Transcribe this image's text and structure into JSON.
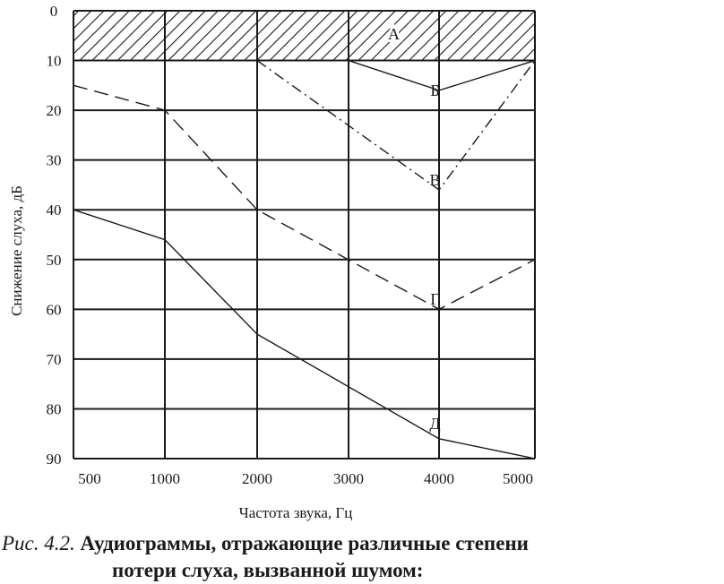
{
  "chart_data": {
    "type": "line",
    "xlabel": "Частота звука, Гц",
    "ylabel": "Снижение слуха, дБ",
    "x_ticks": [
      "500",
      "1000",
      "2000",
      "3000",
      "4000",
      "5000"
    ],
    "y_ticks": [
      "0",
      "10",
      "20",
      "30",
      "40",
      "50",
      "60",
      "70",
      "80",
      "90"
    ],
    "ylim": [
      0,
      90
    ],
    "y_inverted": true,
    "grid": true,
    "band": {
      "label": "А",
      "from": 0,
      "to": 10,
      "style": "hatched"
    },
    "series": [
      {
        "name": "Б",
        "x": [
          3000,
          4000,
          5000
        ],
        "y": [
          10,
          16,
          10
        ],
        "dash": "solid"
      },
      {
        "name": "В",
        "x": [
          2000,
          4000,
          5000
        ],
        "y": [
          10,
          36,
          10
        ],
        "dash": "dashdot"
      },
      {
        "name": "Г",
        "x": [
          500,
          1000,
          2000,
          4000,
          5000
        ],
        "y": [
          15,
          20,
          40,
          60,
          50
        ],
        "dash": "dashed"
      },
      {
        "name": "Д",
        "x": [
          500,
          1000,
          2000,
          4000,
          5000
        ],
        "y": [
          40,
          46,
          65,
          86,
          90
        ],
        "dash": "solid"
      }
    ],
    "labels": [
      {
        "text": "Б",
        "x": 3500,
        "y": 16
      },
      {
        "text": "В",
        "x": 3500,
        "y": 34
      },
      {
        "text": "Г",
        "x": 3500,
        "y": 58
      },
      {
        "text": "Д",
        "x": 3500,
        "y": 83
      }
    ]
  },
  "caption": {
    "prefix": "Рис. 4.2.",
    "line1": " Аудиограммы, отражающие различные степени",
    "line2": "потери слуха, вызванной шумом:"
  }
}
